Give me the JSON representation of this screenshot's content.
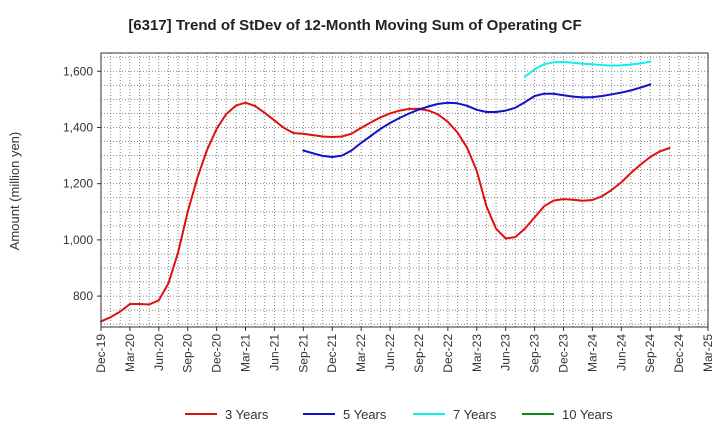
{
  "chart_data": {
    "type": "line",
    "title": "[6317]  Trend of StDev of 12-Month Moving Sum of Operating CF",
    "ylabel": "Amount (million yen)",
    "xlabel": "",
    "ylim": [
      690,
      1665
    ],
    "yticks": [
      800,
      1000,
      1200,
      1400,
      1600
    ],
    "ytick_labels": [
      "800",
      "1,000",
      "1,200",
      "1,400",
      "1,600"
    ],
    "x_range": [
      "2019-12",
      "2025-03"
    ],
    "xticks": [
      "Dec-19",
      "Mar-20",
      "Jun-20",
      "Sep-20",
      "Dec-20",
      "Mar-21",
      "Jun-21",
      "Sep-21",
      "Dec-21",
      "Mar-22",
      "Jun-22",
      "Sep-22",
      "Dec-22",
      "Mar-23",
      "Jun-23",
      "Sep-23",
      "Dec-23",
      "Mar-24",
      "Jun-24",
      "Sep-24",
      "Dec-24",
      "Mar-25"
    ],
    "grid": true,
    "legend_position": "bottom",
    "series": [
      {
        "name": "3 Years",
        "color": "#dd1111",
        "points": [
          [
            "2019-12",
            710
          ],
          [
            "2020-01",
            725
          ],
          [
            "2020-02",
            745
          ],
          [
            "2020-03",
            772
          ],
          [
            "2020-04",
            772
          ],
          [
            "2020-05",
            770
          ],
          [
            "2020-06",
            785
          ],
          [
            "2020-07",
            845
          ],
          [
            "2020-08",
            955
          ],
          [
            "2020-09",
            1100
          ],
          [
            "2020-10",
            1220
          ],
          [
            "2020-11",
            1320
          ],
          [
            "2020-12",
            1395
          ],
          [
            "2021-01",
            1448
          ],
          [
            "2021-02",
            1478
          ],
          [
            "2021-03",
            1488
          ],
          [
            "2021-04",
            1476
          ],
          [
            "2021-05",
            1452
          ],
          [
            "2021-06",
            1425
          ],
          [
            "2021-07",
            1398
          ],
          [
            "2021-08",
            1380
          ],
          [
            "2021-09",
            1378
          ],
          [
            "2021-10",
            1373
          ],
          [
            "2021-11",
            1368
          ],
          [
            "2021-12",
            1366
          ],
          [
            "2022-01",
            1368
          ],
          [
            "2022-02",
            1378
          ],
          [
            "2022-03",
            1398
          ],
          [
            "2022-04",
            1418
          ],
          [
            "2022-05",
            1436
          ],
          [
            "2022-06",
            1450
          ],
          [
            "2022-07",
            1460
          ],
          [
            "2022-08",
            1466
          ],
          [
            "2022-09",
            1466
          ],
          [
            "2022-10",
            1460
          ],
          [
            "2022-11",
            1446
          ],
          [
            "2022-12",
            1420
          ],
          [
            "2023-01",
            1382
          ],
          [
            "2023-02",
            1328
          ],
          [
            "2023-03",
            1245
          ],
          [
            "2023-04",
            1120
          ],
          [
            "2023-05",
            1040
          ],
          [
            "2023-06",
            1005
          ],
          [
            "2023-07",
            1010
          ],
          [
            "2023-08",
            1040
          ],
          [
            "2023-09",
            1080
          ],
          [
            "2023-10",
            1120
          ],
          [
            "2023-11",
            1140
          ],
          [
            "2023-12",
            1145
          ],
          [
            "2024-01",
            1143
          ],
          [
            "2024-02",
            1139
          ],
          [
            "2024-03",
            1142
          ],
          [
            "2024-04",
            1155
          ],
          [
            "2024-05",
            1178
          ],
          [
            "2024-06",
            1205
          ],
          [
            "2024-07",
            1238
          ],
          [
            "2024-08",
            1268
          ],
          [
            "2024-09",
            1295
          ],
          [
            "2024-10",
            1315
          ],
          [
            "2024-11",
            1327
          ]
        ]
      },
      {
        "name": "5 Years",
        "color": "#1111cc",
        "points": [
          [
            "2021-09",
            1318
          ],
          [
            "2021-10",
            1308
          ],
          [
            "2021-11",
            1299
          ],
          [
            "2021-12",
            1295
          ],
          [
            "2022-01",
            1300
          ],
          [
            "2022-02",
            1318
          ],
          [
            "2022-03",
            1345
          ],
          [
            "2022-04",
            1370
          ],
          [
            "2022-05",
            1395
          ],
          [
            "2022-06",
            1416
          ],
          [
            "2022-07",
            1434
          ],
          [
            "2022-08",
            1450
          ],
          [
            "2022-09",
            1464
          ],
          [
            "2022-10",
            1475
          ],
          [
            "2022-11",
            1484
          ],
          [
            "2022-12",
            1488
          ],
          [
            "2023-01",
            1486
          ],
          [
            "2023-02",
            1477
          ],
          [
            "2023-03",
            1463
          ],
          [
            "2023-04",
            1455
          ],
          [
            "2023-05",
            1455
          ],
          [
            "2023-06",
            1460
          ],
          [
            "2023-07",
            1470
          ],
          [
            "2023-08",
            1490
          ],
          [
            "2023-09",
            1512
          ],
          [
            "2023-10",
            1520
          ],
          [
            "2023-11",
            1520
          ],
          [
            "2023-12",
            1515
          ],
          [
            "2024-01",
            1510
          ],
          [
            "2024-02",
            1507
          ],
          [
            "2024-03",
            1508
          ],
          [
            "2024-04",
            1512
          ],
          [
            "2024-05",
            1518
          ],
          [
            "2024-06",
            1524
          ],
          [
            "2024-07",
            1532
          ],
          [
            "2024-08",
            1542
          ],
          [
            "2024-09",
            1553
          ]
        ]
      },
      {
        "name": "7 Years",
        "color": "#11eeee",
        "points": [
          [
            "2023-08",
            1580
          ],
          [
            "2023-09",
            1607
          ],
          [
            "2023-10",
            1625
          ],
          [
            "2023-11",
            1632
          ],
          [
            "2023-12",
            1633
          ],
          [
            "2024-01",
            1630
          ],
          [
            "2024-02",
            1627
          ],
          [
            "2024-03",
            1625
          ],
          [
            "2024-04",
            1622
          ],
          [
            "2024-05",
            1620
          ],
          [
            "2024-06",
            1621
          ],
          [
            "2024-07",
            1624
          ],
          [
            "2024-08",
            1628
          ],
          [
            "2024-09",
            1634
          ]
        ]
      },
      {
        "name": "10 Years",
        "color": "#118811",
        "points": []
      }
    ]
  }
}
